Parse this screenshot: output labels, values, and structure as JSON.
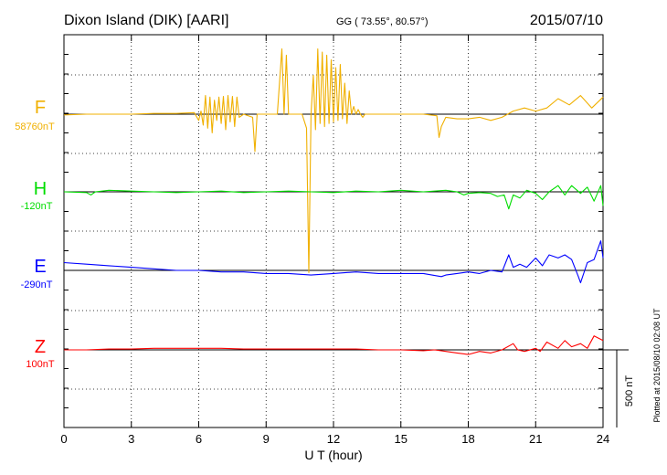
{
  "header": {
    "station": "Dixon Island (DIK)  [AARI]",
    "coords": "GG ( 73.55°,  80.57°)",
    "date": "2015/07/10"
  },
  "side_note": "Plotted at 2015/08/10 02:08 UT",
  "scale_label": "500 nT",
  "chart_data": {
    "type": "line",
    "title": "Dixon Island (DIK)  [AARI]",
    "xlabel": "U T (hour)",
    "xlim": [
      0,
      24
    ],
    "x_ticks": [
      0,
      3,
      6,
      9,
      12,
      15,
      18,
      21,
      24
    ],
    "x_tick_labels": [
      "0",
      "3",
      "6",
      "9",
      "12",
      "15",
      "18",
      "21",
      "24"
    ],
    "grid": true,
    "units_note": "values are deviations from each channel's baseline, in nT",
    "series": [
      {
        "name": "F",
        "baseline_label": "58760nT",
        "color": "#f0b000",
        "x": [
          0,
          1,
          2,
          3,
          4,
          5,
          5.8,
          6,
          6.1,
          6.2,
          6.3,
          6.4,
          6.5,
          6.6,
          6.7,
          6.8,
          6.9,
          7,
          7.1,
          7.2,
          7.3,
          7.4,
          7.5,
          7.6,
          7.7,
          7.8,
          8,
          8.4,
          8.5,
          8.6,
          8.8,
          9,
          9.5,
          9.7,
          9.8,
          9.9,
          10,
          10.2,
          10.4,
          10.6,
          10.8,
          10.9,
          11,
          11.1,
          11.2,
          11.3,
          11.4,
          11.5,
          11.6,
          11.7,
          11.8,
          11.9,
          12,
          12.1,
          12.2,
          12.3,
          12.4,
          12.5,
          12.6,
          12.7,
          12.8,
          12.9,
          13,
          13.1,
          13.2,
          13.3,
          13.4,
          13.6,
          14,
          15,
          16,
          16.6,
          16.7,
          16.8,
          17,
          17.5,
          18,
          18.5,
          19,
          19.5,
          20,
          20.5,
          21,
          21.5,
          22,
          22.5,
          23,
          23.5,
          24
        ],
        "values": [
          -5,
          0,
          0,
          0,
          5,
          5,
          10,
          -40,
          20,
          -70,
          120,
          -90,
          110,
          -120,
          90,
          -40,
          110,
          -60,
          115,
          -100,
          120,
          -50,
          115,
          -80,
          110,
          -20,
          0,
          -20,
          -240,
          0,
          0,
          0,
          0,
          420,
          0,
          380,
          0,
          0,
          0,
          0,
          -90,
          -1020,
          0,
          250,
          -100,
          420,
          -60,
          400,
          -80,
          380,
          -60,
          350,
          -50,
          300,
          -40,
          320,
          -30,
          200,
          -60,
          150,
          0,
          50,
          0,
          30,
          0,
          -20,
          0,
          0,
          0,
          0,
          0,
          -10,
          -150,
          -80,
          -20,
          -30,
          -30,
          -20,
          -40,
          -20,
          20,
          40,
          20,
          40,
          100,
          60,
          120,
          40,
          110
        ]
      },
      {
        "name": "H",
        "baseline_label": "-120nT",
        "color": "#00dd00",
        "x": [
          0,
          1,
          1.2,
          1.4,
          2,
          3,
          4,
          5,
          6,
          7,
          8,
          9,
          10,
          11,
          12,
          13,
          14,
          15,
          16,
          17,
          17.5,
          17.8,
          18,
          18.5,
          19,
          19.3,
          19.6,
          19.8,
          20,
          20.3,
          20.6,
          21,
          21.3,
          21.6,
          22,
          22.3,
          22.6,
          23,
          23.3,
          23.6,
          23.9,
          24
        ],
        "values": [
          0,
          -5,
          -20,
          0,
          10,
          5,
          0,
          -5,
          0,
          5,
          -5,
          0,
          5,
          0,
          -5,
          5,
          0,
          10,
          0,
          10,
          0,
          -20,
          -10,
          -5,
          -10,
          -30,
          -20,
          -110,
          -20,
          -40,
          10,
          -10,
          -50,
          0,
          40,
          -20,
          40,
          -10,
          30,
          -60,
          40,
          -90
        ]
      },
      {
        "name": "E",
        "baseline_label": "-290nT",
        "color": "#0000ff",
        "x": [
          0,
          1,
          2,
          3,
          4,
          5,
          6,
          7,
          8,
          9,
          10,
          11,
          12,
          13,
          14,
          15,
          16,
          16.8,
          17,
          17.5,
          18,
          18.5,
          19,
          19.5,
          19.8,
          20,
          20.3,
          20.6,
          21,
          21.3,
          21.6,
          22,
          22.3,
          22.6,
          22.9,
          23,
          23.3,
          23.6,
          23.9,
          24
        ],
        "values": [
          50,
          40,
          30,
          20,
          10,
          0,
          0,
          -10,
          -10,
          -20,
          -20,
          -30,
          -20,
          -10,
          -20,
          -20,
          -20,
          -40,
          -30,
          -20,
          -10,
          -20,
          0,
          -10,
          100,
          20,
          40,
          20,
          80,
          30,
          100,
          80,
          100,
          70,
          -40,
          -80,
          50,
          70,
          190,
          80
        ]
      },
      {
        "name": "Z",
        "baseline_label": "100nT",
        "color": "#ff0000",
        "x": [
          0,
          1,
          2,
          3,
          4,
          5,
          6,
          7,
          8,
          9,
          10,
          11,
          12,
          13,
          14,
          15,
          16,
          16.5,
          17,
          17.5,
          18,
          18.5,
          19,
          19.5,
          20,
          20.2,
          20.5,
          21,
          21.2,
          21.5,
          22,
          22.3,
          22.6,
          23,
          23.3,
          23.6,
          24
        ],
        "values": [
          0,
          0,
          5,
          5,
          10,
          10,
          10,
          10,
          5,
          5,
          5,
          5,
          5,
          5,
          0,
          0,
          -5,
          0,
          -10,
          -20,
          -30,
          -10,
          -20,
          0,
          40,
          0,
          -10,
          10,
          -10,
          50,
          10,
          60,
          20,
          40,
          10,
          90,
          60
        ]
      }
    ]
  }
}
